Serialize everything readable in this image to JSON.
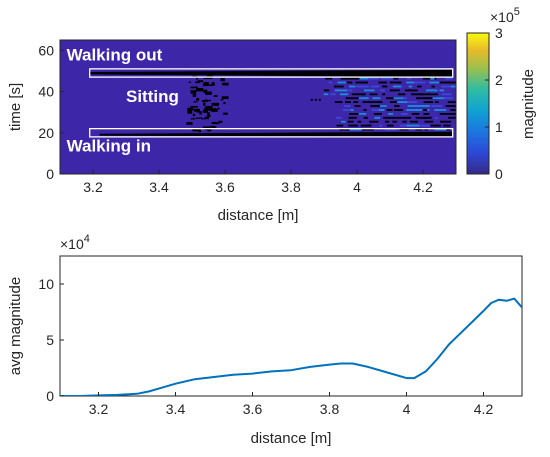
{
  "chart_data": [
    {
      "type": "heatmap",
      "xlabel": "distance [m]",
      "ylabel": "time [s]",
      "xlim": [
        3.1,
        4.3
      ],
      "ylim": [
        0,
        65
      ],
      "xticks": [
        3.2,
        3.4,
        3.6,
        3.8,
        4,
        4.2
      ],
      "xtick_labels": [
        "3.2",
        "3.4",
        "3.6",
        "3.8",
        "4",
        "4.2"
      ],
      "yticks": [
        0,
        20,
        40,
        60
      ],
      "ytick_labels": [
        "0",
        "20",
        "40",
        "60"
      ],
      "colorbar": {
        "label": "magnitude",
        "range": [
          0,
          3
        ],
        "ticks": [
          0,
          1,
          2,
          3
        ],
        "tick_labels": [
          "0",
          "1",
          "2",
          "3"
        ],
        "exponent_base": "×10",
        "exponent_power": "5",
        "colormap": "parula"
      },
      "annotations": [
        {
          "text": "Walking out",
          "x": 3.12,
          "y": 55
        },
        {
          "text": "Sitting",
          "x": 3.3,
          "y": 35
        },
        {
          "text": "Walking in",
          "x": 3.12,
          "y": 11
        }
      ],
      "regions": [
        {
          "label": "Walking out",
          "x": [
            3.19,
            4.29
          ],
          "y": [
            47,
            51
          ]
        },
        {
          "label": "Walking in",
          "x": [
            3.19,
            4.29
          ],
          "y": [
            18,
            22
          ]
        }
      ],
      "colors": {
        "background": "#3d26a8",
        "low": "#3b2ab8",
        "mid": "#3a4ad8",
        "high": "#1a90dd",
        "empty": "#000000"
      }
    },
    {
      "type": "line",
      "xlabel": "distance [m]",
      "ylabel": "avg magnitude",
      "xlim": [
        3.1,
        4.3
      ],
      "ylim": [
        0,
        12.5
      ],
      "xticks": [
        3.2,
        3.4,
        3.6,
        3.8,
        4,
        4.2
      ],
      "xtick_labels": [
        "3.2",
        "3.4",
        "3.6",
        "3.8",
        "4",
        "4.2"
      ],
      "yticks": [
        0,
        5,
        10
      ],
      "ytick_labels": [
        "0",
        "5",
        "10"
      ],
      "y_exponent_base": "×10",
      "y_exponent_power": "4",
      "color": "#0072bd",
      "series": [
        {
          "x": [
            3.1,
            3.15,
            3.2,
            3.25,
            3.3,
            3.33,
            3.36,
            3.4,
            3.45,
            3.5,
            3.55,
            3.6,
            3.65,
            3.7,
            3.75,
            3.8,
            3.83,
            3.86,
            3.9,
            3.95,
            4.0,
            4.02,
            4.05,
            4.08,
            4.11,
            4.14,
            4.17,
            4.2,
            4.22,
            4.24,
            4.26,
            4.28,
            4.3
          ],
          "y": [
            0.0,
            0.0,
            0.05,
            0.1,
            0.2,
            0.4,
            0.7,
            1.1,
            1.5,
            1.7,
            1.9,
            2.0,
            2.2,
            2.3,
            2.6,
            2.8,
            2.9,
            2.9,
            2.6,
            2.1,
            1.6,
            1.6,
            2.2,
            3.3,
            4.6,
            5.6,
            6.6,
            7.6,
            8.3,
            8.6,
            8.5,
            8.7,
            7.9
          ]
        }
      ]
    }
  ]
}
